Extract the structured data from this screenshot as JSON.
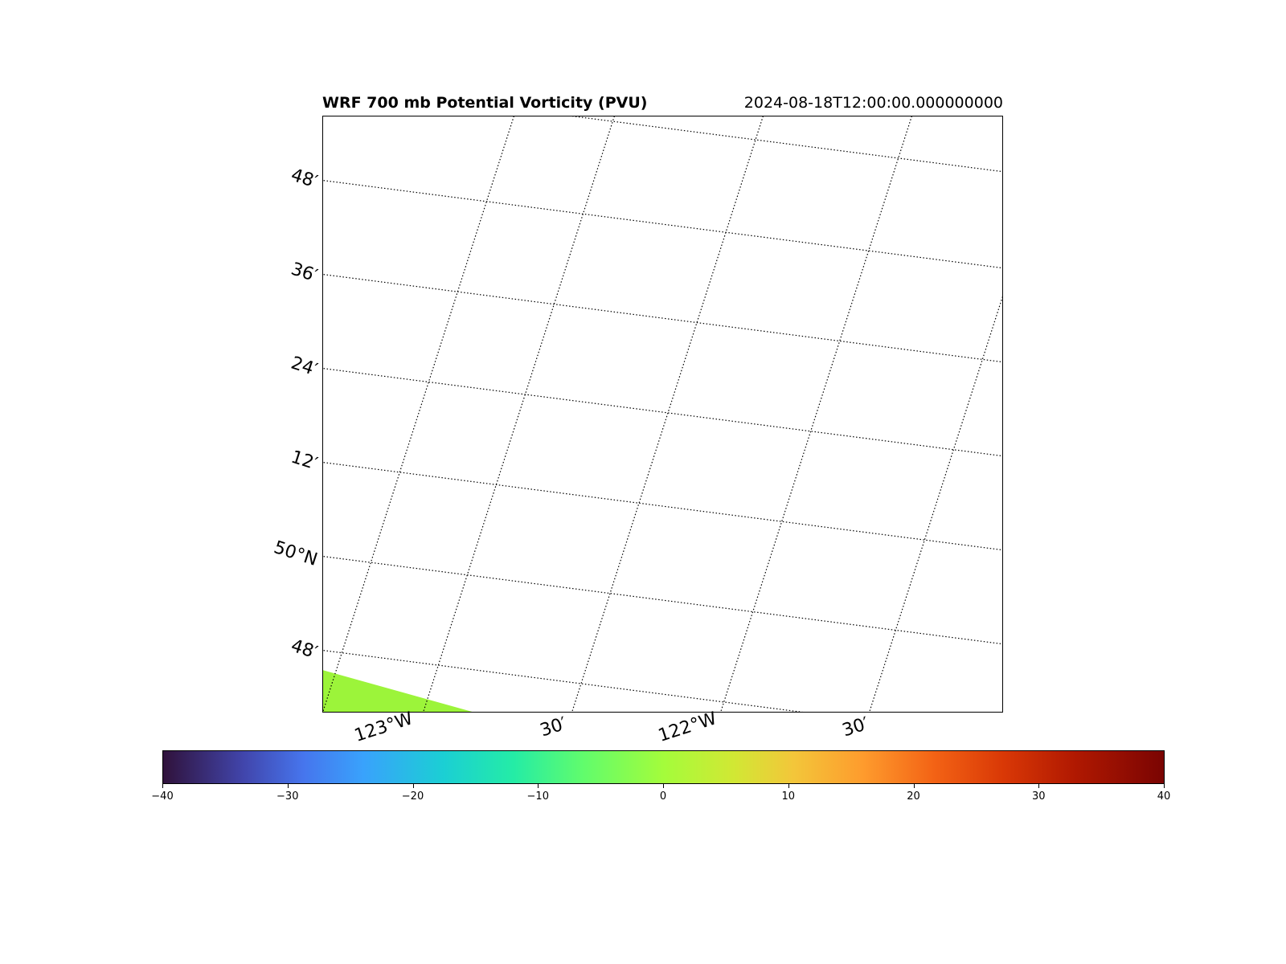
{
  "title": "WRF 700 mb Potential Vorticity (PVU)",
  "valid_time": "2024-08-18T12:00:00.000000000",
  "lat_labels": [
    "48′",
    "36′",
    "24′",
    "12′",
    "50°N",
    "48′"
  ],
  "lon_labels": [
    "123°W",
    "30′",
    "122°W",
    "30′"
  ],
  "colorbar": {
    "colormap": "turbo",
    "tick_labels": [
      "−40",
      "−30",
      "−20",
      "−10",
      "0",
      "10",
      "20",
      "30",
      "40"
    ],
    "fill_value": 0,
    "fill_color": "#9cf43a"
  }
}
